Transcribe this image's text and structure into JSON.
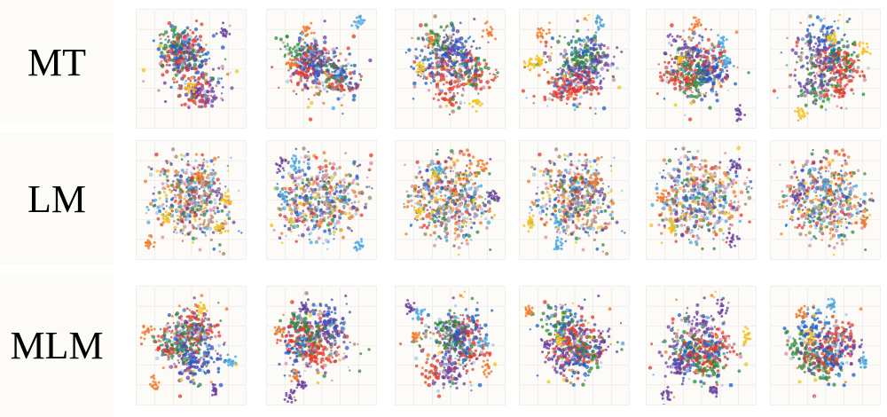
{
  "rows": [
    {
      "label": "MT"
    },
    {
      "label": "LM"
    },
    {
      "label": "MLM"
    }
  ],
  "panel_count_per_row": 6,
  "palette": [
    "#e23a2a",
    "#2f8a3a",
    "#1f5cc8",
    "#6a3fa0",
    "#f07a2a",
    "#f2c21c",
    "#4aa6e0",
    "#9a8a6a",
    "#d98aa8",
    "#a8c8e8"
  ]
}
